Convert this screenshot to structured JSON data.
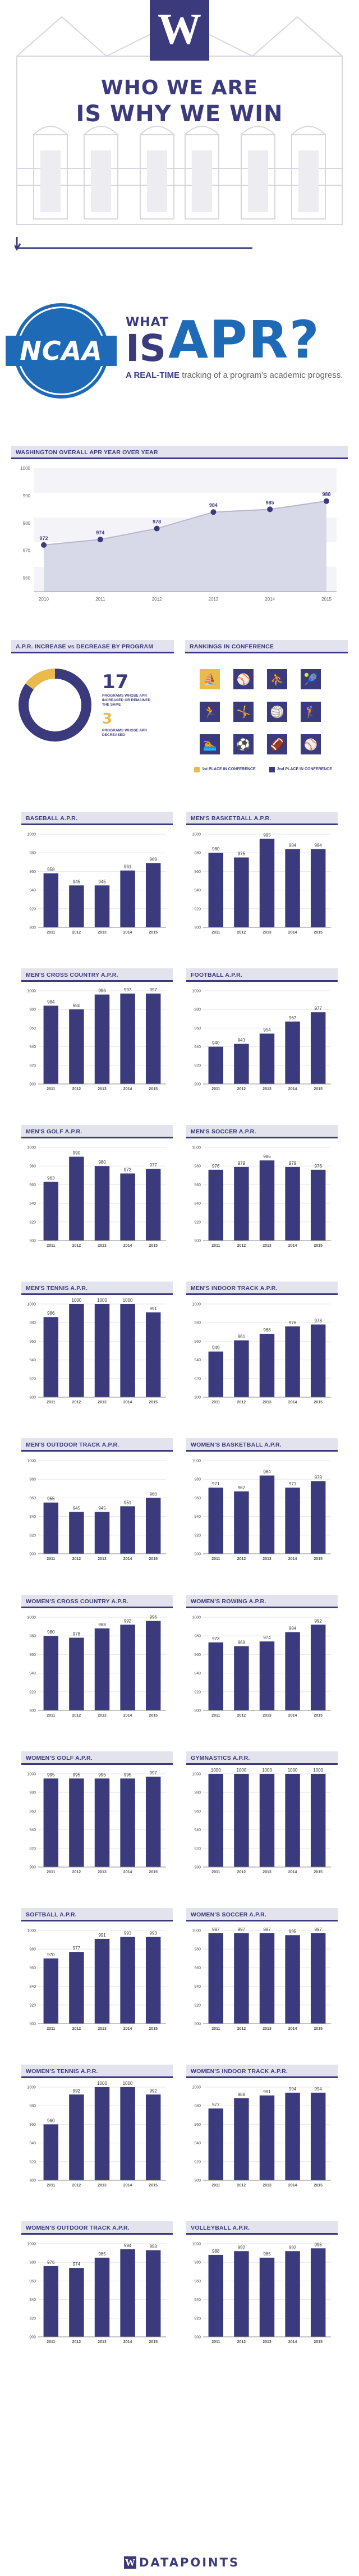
{
  "header": {
    "logo_letter": "W",
    "line1": "WHO WE ARE",
    "line2": "IS WHY WE WIN"
  },
  "intro": {
    "ncaa_logo": "NCAA",
    "what": "WHAT",
    "is": "IS",
    "apr": "APR?",
    "subtitle_bold": "A REAL-TIME",
    "subtitle_rest": " tracking of a program's academic progress."
  },
  "colors": {
    "primary": "#3b3a7d",
    "gold": "#e8bb4a",
    "ncaa_blue": "#1f6ab7",
    "area_fill": "#d8d9e8",
    "title_bg": "#e3e3ee"
  },
  "increase": {
    "title": "A.P.R. INCREASE vs DECREASE BY PROGRAM",
    "increased_count": "17",
    "increased_text": "PROGRAMS WHOSE APR INCREASED OR REMAINED THE SAME",
    "decreased_count": "3",
    "decreased_text": "PROGRAMS WHOSE APR DECREASED"
  },
  "rankings": {
    "title": "RANKINGS IN CONFERENCE",
    "legend_first": "1st PLACE IN CONFERENCE",
    "legend_second": "2nd PLACE IN CONFERENCE",
    "icons": [
      {
        "icon": "rowing-icon",
        "glyph": "⛵",
        "place": "gold"
      },
      {
        "icon": "softball-icon",
        "glyph": "⚾",
        "place": "purple"
      },
      {
        "icon": "basketball-icon",
        "glyph": "⛹",
        "place": "purple"
      },
      {
        "icon": "tennis-icon",
        "glyph": "🎾",
        "place": "purple"
      },
      {
        "icon": "track-icon",
        "glyph": "🏃",
        "place": "purple"
      },
      {
        "icon": "gymnastics-icon",
        "glyph": "🤸",
        "place": "purple"
      },
      {
        "icon": "volleyball-icon",
        "glyph": "🏐",
        "place": "purple"
      },
      {
        "icon": "golf-icon",
        "glyph": "🏌",
        "place": "purple"
      },
      {
        "icon": "swimming-icon",
        "glyph": "🏊",
        "place": "purple"
      },
      {
        "icon": "soccer-icon",
        "glyph": "⚽",
        "place": "purple"
      },
      {
        "icon": "football-icon",
        "glyph": "🏈",
        "place": "purple"
      },
      {
        "icon": "baseball-icon",
        "glyph": "⚾",
        "place": "purple"
      }
    ]
  },
  "footer": {
    "logo_letter": "W",
    "text": "DATAPOINTS"
  },
  "chart_data": [
    {
      "id": "overall",
      "type": "area",
      "title": "WASHINGTON OVERALL APR YEAR OVER YEAR",
      "x": [
        "2010",
        "2011",
        "2012",
        "2013",
        "2014",
        "2015"
      ],
      "values": [
        972,
        974,
        978,
        984,
        985,
        988
      ],
      "ytick_labels": [
        "1000",
        "990",
        "980",
        "970",
        "960"
      ],
      "ylim": [
        955,
        1000
      ]
    },
    {
      "id": "increase",
      "type": "pie",
      "title": "A.P.R. INCREASE vs DECREASE BY PROGRAM",
      "categories": [
        "PROGRAMS WHOSE APR INCREASED OR REMAINED THE SAME",
        "PROGRAMS WHOSE APR DECREASED"
      ],
      "values": [
        17,
        3
      ]
    },
    {
      "id": "baseball",
      "type": "bar",
      "title": "BASEBALL A.P.R.",
      "categories": [
        "2011",
        "2012",
        "2013",
        "2014",
        "2015"
      ],
      "values": [
        958,
        945,
        945,
        961,
        969
      ],
      "ylim": [
        900,
        1000
      ]
    },
    {
      "id": "mbb",
      "type": "bar",
      "title": "MEN'S BASKETBALL A.P.R.",
      "categories": [
        "2011",
        "2012",
        "2013",
        "2014",
        "2015"
      ],
      "values": [
        980,
        975,
        995,
        984,
        984
      ],
      "ylim": [
        900,
        1000
      ]
    },
    {
      "id": "mxc",
      "type": "bar",
      "title": "MEN'S CROSS COUNTRY A.P.R.",
      "categories": [
        "2011",
        "2012",
        "2013",
        "2014",
        "2015"
      ],
      "values": [
        984,
        980,
        996,
        997,
        997
      ],
      "ylim": [
        900,
        1000
      ]
    },
    {
      "id": "football",
      "type": "bar",
      "title": "FOOTBALL A.P.R.",
      "categories": [
        "2011",
        "2012",
        "2013",
        "2014",
        "2015"
      ],
      "values": [
        940,
        943,
        954,
        967,
        977
      ],
      "ylim": [
        900,
        1000
      ]
    },
    {
      "id": "mgolf",
      "type": "bar",
      "title": "MEN'S GOLF A.P.R.",
      "categories": [
        "2011",
        "2012",
        "2013",
        "2014",
        "2015"
      ],
      "values": [
        963,
        990,
        980,
        972,
        977
      ],
      "ylim": [
        900,
        1000
      ]
    },
    {
      "id": "msoccer",
      "type": "bar",
      "title": "MEN'S SOCCER A.P.R.",
      "categories": [
        "2011",
        "2012",
        "2013",
        "2014",
        "2015"
      ],
      "values": [
        976,
        979,
        986,
        979,
        976
      ],
      "ylim": [
        900,
        1000
      ]
    },
    {
      "id": "mtennis",
      "type": "bar",
      "title": "MEN'S TENNIS A.P.R.",
      "categories": [
        "2011",
        "2012",
        "2013",
        "2014",
        "2015"
      ],
      "values": [
        986,
        1000,
        1000,
        1000,
        991
      ],
      "ylim": [
        900,
        1000
      ]
    },
    {
      "id": "mindoor",
      "type": "bar",
      "title": "MEN'S INDOOR TRACK A.P.R.",
      "categories": [
        "2011",
        "2012",
        "2013",
        "2014",
        "2015"
      ],
      "values": [
        949,
        961,
        968,
        976,
        978
      ],
      "ylim": [
        900,
        1000
      ]
    },
    {
      "id": "moutdoor",
      "type": "bar",
      "title": "MEN'S OUTDOOR TRACK A.P.R.",
      "categories": [
        "2011",
        "2012",
        "2013",
        "2014",
        "2015"
      ],
      "values": [
        955,
        945,
        945,
        951,
        960
      ],
      "ylim": [
        900,
        1000
      ]
    },
    {
      "id": "wbb",
      "type": "bar",
      "title": "WOMEN'S BASKETBALL A.P.R.",
      "categories": [
        "2011",
        "2012",
        "2013",
        "2014",
        "2015"
      ],
      "values": [
        971,
        967,
        984,
        971,
        978
      ],
      "ylim": [
        900,
        1000
      ]
    },
    {
      "id": "wxc",
      "type": "bar",
      "title": "WOMEN'S CROSS COUNTRY A.P.R.",
      "categories": [
        "2011",
        "2012",
        "2013",
        "2014",
        "2015"
      ],
      "values": [
        980,
        978,
        988,
        992,
        996
      ],
      "ylim": [
        900,
        1000
      ]
    },
    {
      "id": "wrowing",
      "type": "bar",
      "title": "WOMEN'S ROWING A.P.R.",
      "categories": [
        "2011",
        "2012",
        "2013",
        "2014",
        "2015"
      ],
      "values": [
        973,
        969,
        974,
        984,
        992
      ],
      "ylim": [
        900,
        1000
      ]
    },
    {
      "id": "wgolf",
      "type": "bar",
      "title": "WOMEN'S GOLF A.P.R.",
      "categories": [
        "2011",
        "2012",
        "2013",
        "2014",
        "2015"
      ],
      "values": [
        995,
        995,
        995,
        995,
        997
      ],
      "ylim": [
        900,
        1000
      ]
    },
    {
      "id": "gym",
      "type": "bar",
      "title": "GYMNASTICS A.P.R.",
      "categories": [
        "2011",
        "2012",
        "2013",
        "2014",
        "2015"
      ],
      "values": [
        1000,
        1000,
        1000,
        1000,
        1000
      ],
      "ylim": [
        900,
        1000
      ]
    },
    {
      "id": "softball",
      "type": "bar",
      "title": "SOFTBALL A.P.R.",
      "categories": [
        "2011",
        "2012",
        "2013",
        "2014",
        "2015"
      ],
      "values": [
        970,
        977,
        991,
        993,
        993
      ],
      "ylim": [
        900,
        1000
      ]
    },
    {
      "id": "wsoccer",
      "type": "bar",
      "title": "WOMEN'S SOCCER A.P.R.",
      "categories": [
        "2011",
        "2012",
        "2013",
        "2014",
        "2015"
      ],
      "values": [
        997,
        997,
        997,
        995,
        997
      ],
      "ylim": [
        900,
        1000
      ]
    },
    {
      "id": "wtennis",
      "type": "bar",
      "title": "WOMEN'S TENNIS A.P.R.",
      "categories": [
        "2011",
        "2012",
        "2013",
        "2014",
        "2015"
      ],
      "values": [
        960,
        992,
        1000,
        1000,
        992
      ],
      "ylim": [
        900,
        1000
      ]
    },
    {
      "id": "windoor",
      "type": "bar",
      "title": "WOMEN'S INDOOR TRACK A.P.R.",
      "categories": [
        "2011",
        "2012",
        "2013",
        "2014",
        "2015"
      ],
      "values": [
        977,
        988,
        991,
        994,
        994
      ],
      "ylim": [
        900,
        1000
      ]
    },
    {
      "id": "woutdoor",
      "type": "bar",
      "title": "WOMEN'S OUTDOOR TRACK A.P.R.",
      "categories": [
        "2011",
        "2012",
        "2013",
        "2014",
        "2015"
      ],
      "values": [
        976,
        974,
        985,
        994,
        993
      ],
      "ylim": [
        900,
        1000
      ]
    },
    {
      "id": "volleyball",
      "type": "bar",
      "title": "VOLLEYBALL A.P.R.",
      "categories": [
        "2011",
        "2012",
        "2013",
        "2014",
        "2015"
      ],
      "values": [
        988,
        992,
        985,
        992,
        995
      ],
      "ylim": [
        900,
        1000
      ]
    }
  ]
}
